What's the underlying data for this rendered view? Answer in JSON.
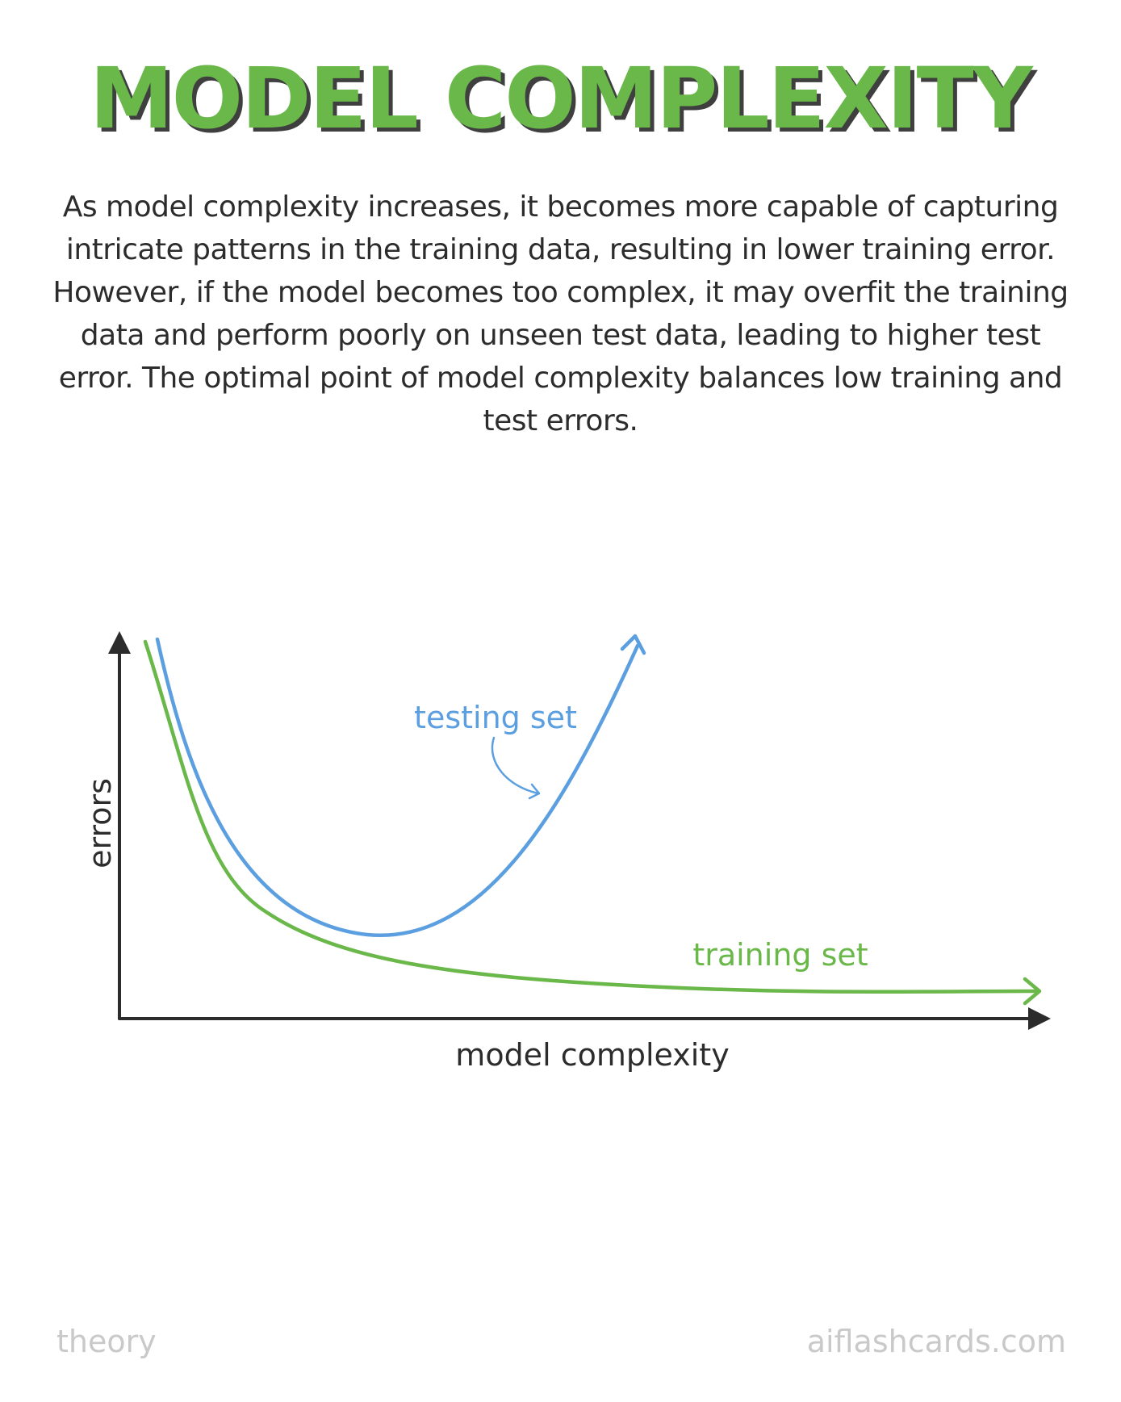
{
  "title": "MODEL COMPLEXITY",
  "description": "As model complexity increases, it becomes more capable of capturing intricate patterns in the training data, resulting in lower training error. However, if the model becomes too complex, it may overfit the training data and perform poorly on unseen test data, leading to higher test error. The optimal point of model complexity balances low training and test errors.",
  "diagram": {
    "y_axis_label": "errors",
    "x_axis_label": "model complexity",
    "testing_label": "testing set",
    "training_label": "training set"
  },
  "footer": {
    "left": "theory",
    "right": "aiflashcards.com"
  },
  "colors": {
    "title": "#6ab74a",
    "title_shadow": "#3f3f3f",
    "testing": "#5b9fe0",
    "training": "#6ab74a",
    "axis": "#2c2c2c",
    "footer": "#c9c9c9"
  }
}
